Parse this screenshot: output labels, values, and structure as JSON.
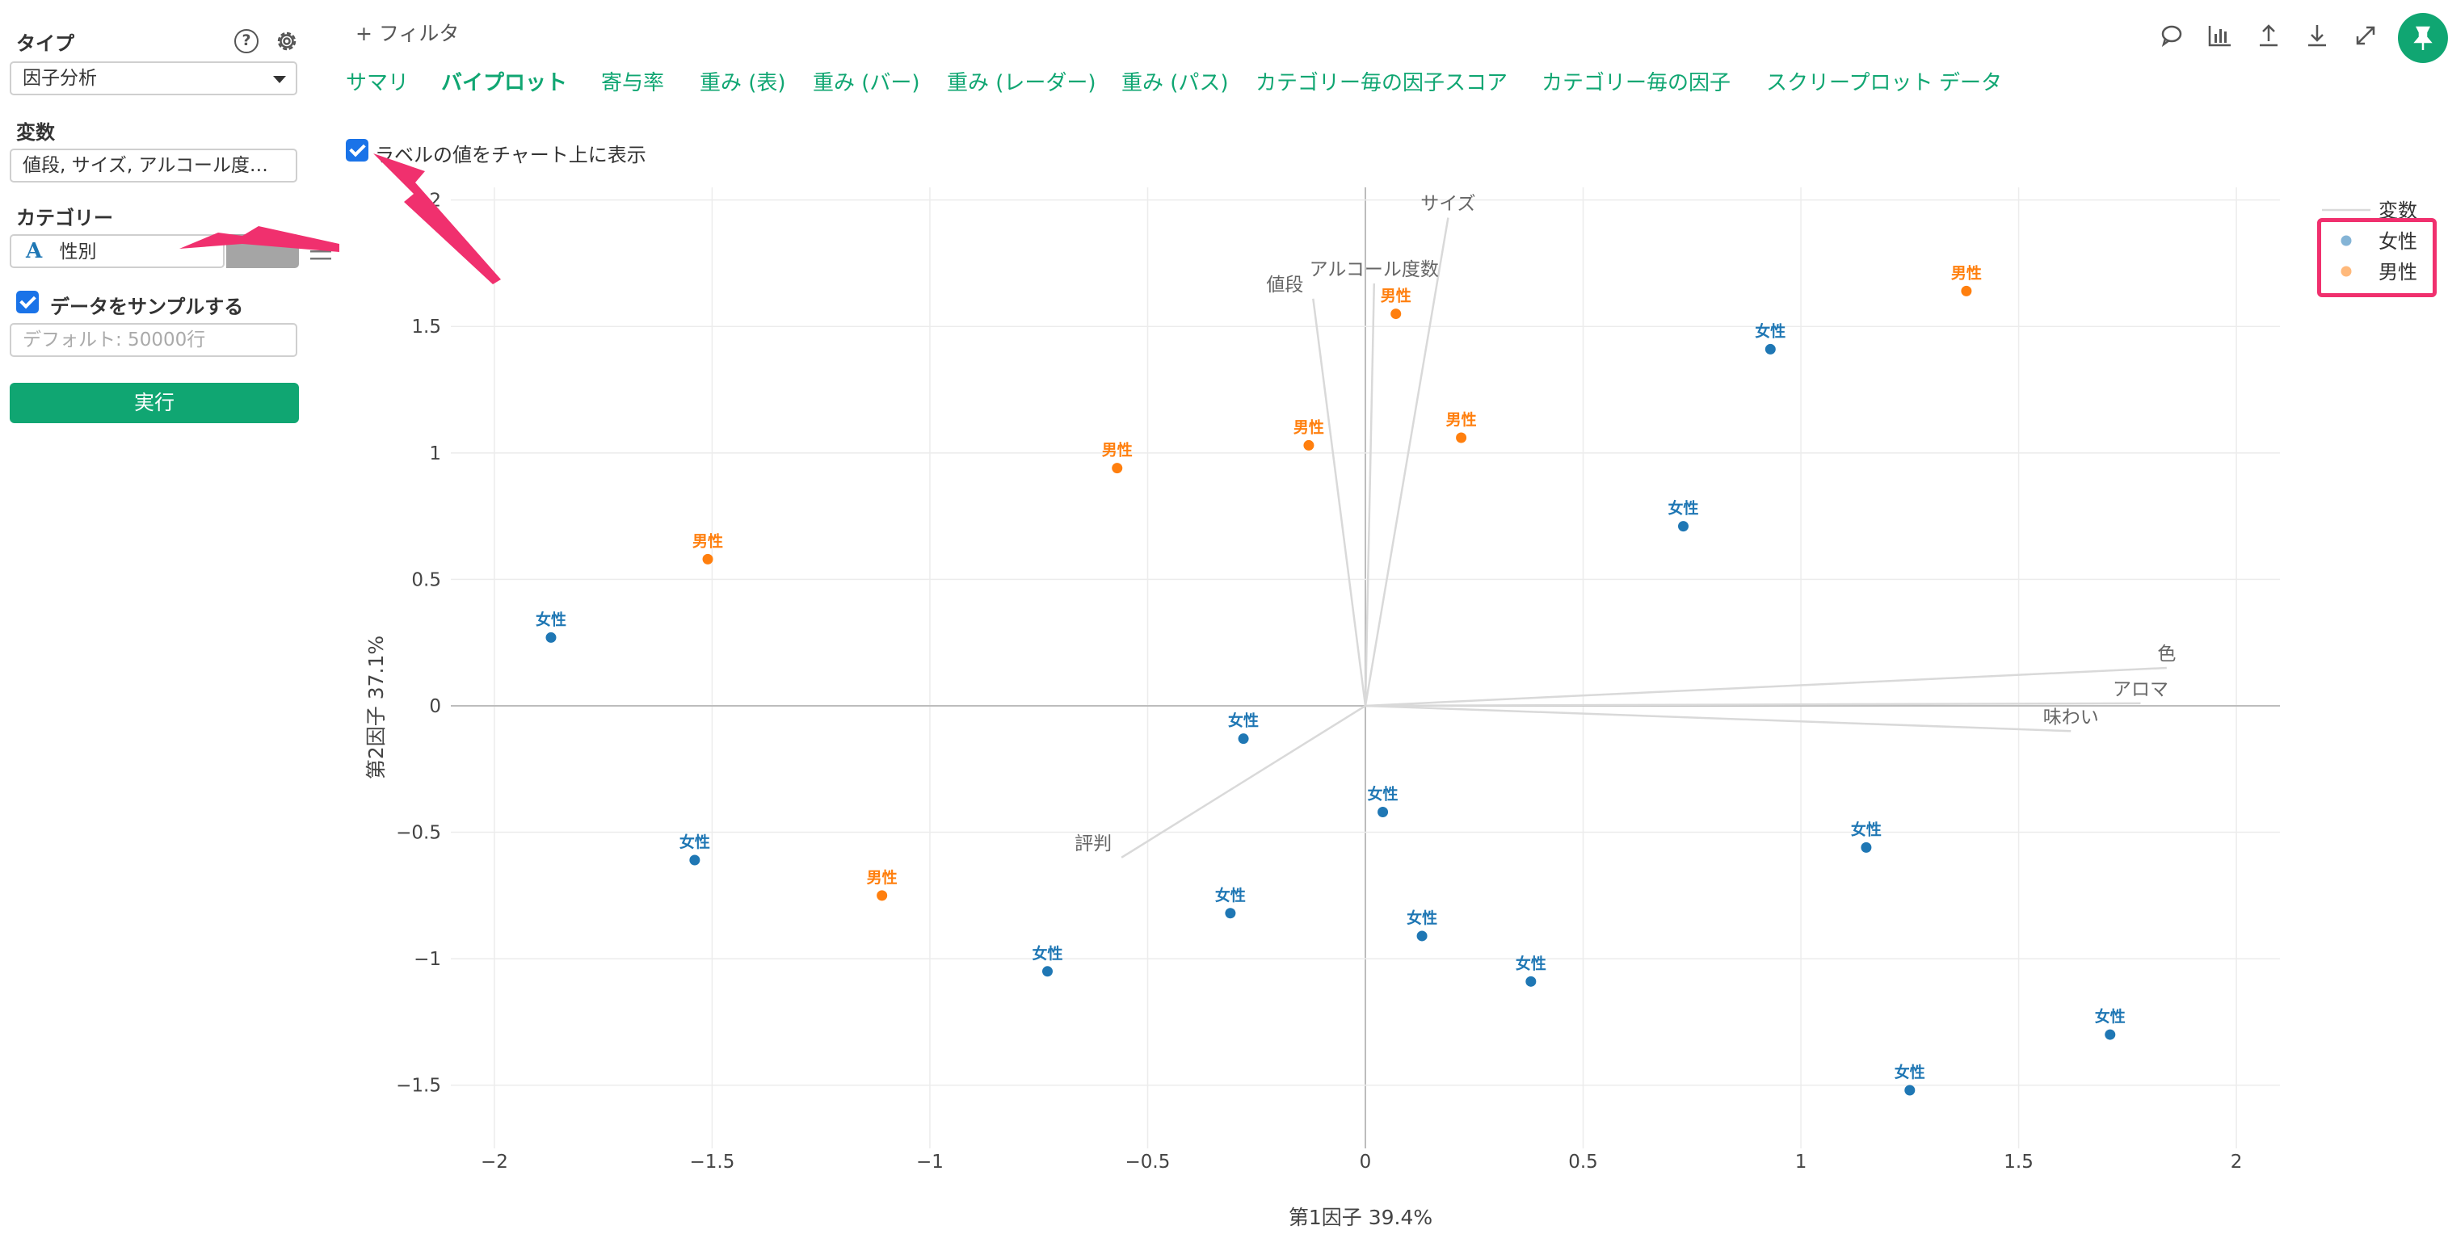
{
  "sidebar": {
    "type_label": "タイプ",
    "type_value": "因子分析",
    "help_icon_text": "?",
    "variables_label": "変数",
    "variables_value": "値段, サイズ, アルコール度…",
    "category_label": "カテゴリー",
    "category_value": "性別",
    "category_type_icon": "A",
    "sample_label": "データをサンプルする",
    "sample_placeholder": "デフォルト: 50000行",
    "run_label": "実行"
  },
  "toolbar": {
    "filter_label": "+ フィルタ",
    "icons": [
      "comment-icon",
      "chart-icon",
      "upload-icon",
      "download-icon",
      "expand-icon",
      "pin-icon"
    ]
  },
  "tabs": [
    {
      "label": "サマリ",
      "active": false
    },
    {
      "label": "バイプロット",
      "active": true
    },
    {
      "label": "寄与率",
      "active": false
    },
    {
      "label": "重み (表)",
      "active": false
    },
    {
      "label": "重み (バー)",
      "active": false
    },
    {
      "label": "重み (レーダー)",
      "active": false
    },
    {
      "label": "重み (パス)",
      "active": false
    },
    {
      "label": "カテゴリー毎の因子スコア",
      "active": false
    },
    {
      "label": "カテゴリー毎の因子",
      "active": false
    },
    {
      "label": "スクリープロット",
      "active": false
    },
    {
      "label": "データ",
      "active": false
    }
  ],
  "show_label_option": {
    "label": "ラベルの値をチャート上に表示",
    "checked": true
  },
  "colors": {
    "accent": "#10a672",
    "female": "#1f77b4",
    "male": "#ff7f0e",
    "variable_line": "#d9d9d9",
    "annotation": "#f0306e"
  },
  "chart_data": {
    "type": "scatter",
    "xlabel": "第1因子 39.4%",
    "ylabel": "第2因子 37.1%",
    "xlim": [
      -2.1,
      2.1
    ],
    "ylim": [
      -1.75,
      2.05
    ],
    "xticks": [
      -2,
      -1.5,
      -1,
      -0.5,
      0,
      0.5,
      1,
      1.5,
      2
    ],
    "yticks": [
      -1.5,
      -1,
      -0.5,
      0,
      0.5,
      1,
      1.5,
      2
    ],
    "tick_labels_x": [
      "−2",
      "−1.5",
      "−1",
      "−0.5",
      "0",
      "0.5",
      "1",
      "1.5",
      "2"
    ],
    "tick_labels_y": [
      "−1.5",
      "−1",
      "−0.5",
      "0",
      "0.5",
      "1",
      "1.5",
      "2"
    ],
    "grid": true,
    "legend_position": "top-right",
    "legend": [
      {
        "name": "変数",
        "kind": "line",
        "color": "#d9d9d9"
      },
      {
        "name": "女性",
        "kind": "point",
        "color": "#1f77b4"
      },
      {
        "name": "男性",
        "kind": "point",
        "color": "#ff7f0e"
      }
    ],
    "variables": [
      {
        "name": "サイズ",
        "x": 0.19,
        "y": 1.93
      },
      {
        "name": "アルコール度数",
        "x": 0.02,
        "y": 1.67
      },
      {
        "name": "値段",
        "x": -0.12,
        "y": 1.61
      },
      {
        "name": "色",
        "x": 1.84,
        "y": 0.15
      },
      {
        "name": "アロマ",
        "x": 1.78,
        "y": 0.01
      },
      {
        "name": "味わい",
        "x": 1.62,
        "y": -0.1
      },
      {
        "name": "評判",
        "x": -0.56,
        "y": -0.6
      }
    ],
    "series": [
      {
        "name": "女性",
        "points": [
          {
            "x": -1.87,
            "y": 0.27,
            "label": "女性"
          },
          {
            "x": -1.54,
            "y": -0.61,
            "label": "女性"
          },
          {
            "x": -0.73,
            "y": -1.05,
            "label": "女性"
          },
          {
            "x": -0.31,
            "y": -0.82,
            "label": "女性"
          },
          {
            "x": -0.28,
            "y": -0.13,
            "label": "女性"
          },
          {
            "x": 0.04,
            "y": -0.42,
            "label": "女性"
          },
          {
            "x": 0.13,
            "y": -0.91,
            "label": "女性"
          },
          {
            "x": 0.38,
            "y": -1.09,
            "label": "女性"
          },
          {
            "x": 0.73,
            "y": 0.71,
            "label": "女性"
          },
          {
            "x": 0.93,
            "y": 1.41,
            "label": "女性"
          },
          {
            "x": 1.15,
            "y": -0.56,
            "label": "女性"
          },
          {
            "x": 1.25,
            "y": -1.52,
            "label": "女性"
          },
          {
            "x": 1.71,
            "y": -1.3,
            "label": "女性"
          }
        ]
      },
      {
        "name": "男性",
        "points": [
          {
            "x": -1.51,
            "y": 0.58,
            "label": "男性"
          },
          {
            "x": -1.11,
            "y": -0.75,
            "label": "男性"
          },
          {
            "x": -0.57,
            "y": 0.94,
            "label": "男性"
          },
          {
            "x": -0.13,
            "y": 1.03,
            "label": "男性"
          },
          {
            "x": 0.07,
            "y": 1.55,
            "label": "男性"
          },
          {
            "x": 0.22,
            "y": 1.06,
            "label": "男性"
          },
          {
            "x": 1.38,
            "y": 1.64,
            "label": "男性"
          }
        ]
      }
    ]
  }
}
